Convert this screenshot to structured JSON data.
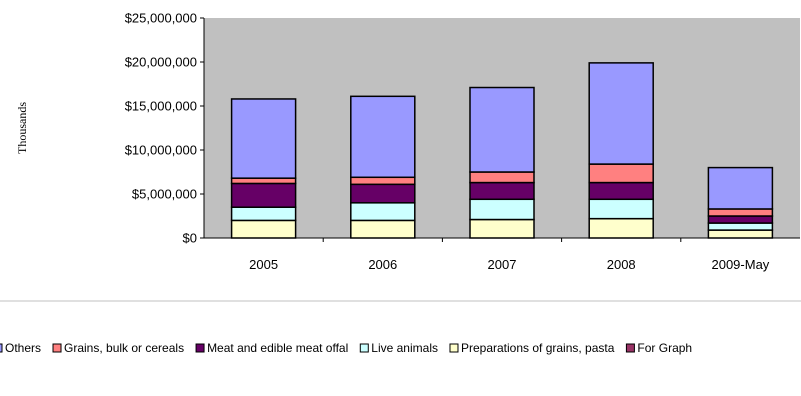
{
  "chart_data": {
    "type": "bar",
    "stacked": true,
    "title": "",
    "xlabel": "",
    "ylabel": "Thousands",
    "categories": [
      "2005",
      "2006",
      "2007",
      "2008",
      "2009-May"
    ],
    "ylim": [
      0,
      25000000
    ],
    "yticks": [
      0,
      5000000,
      10000000,
      15000000,
      20000000,
      25000000
    ],
    "ytick_labels": [
      "$0",
      "$5,000,000",
      "$10,000,000",
      "$15,000,000",
      "$20,000,000",
      "$25,000,000"
    ],
    "grid": false,
    "plot_background": "#c0c0c0",
    "legend_position": "bottom",
    "series": [
      {
        "name": "Preparations of grains, pasta",
        "color": "#ffffcc",
        "values": [
          2000000,
          2000000,
          2100000,
          2200000,
          900000
        ]
      },
      {
        "name": "Live animals",
        "color": "#ccffff",
        "values": [
          1500000,
          2000000,
          2300000,
          2200000,
          800000
        ]
      },
      {
        "name": "Meat and edible meat offal",
        "color": "#660066",
        "values": [
          2700000,
          2100000,
          1900000,
          1900000,
          800000
        ]
      },
      {
        "name": "Grains, bulk or cereals",
        "color": "#ff8080",
        "values": [
          600000,
          800000,
          1200000,
          2100000,
          800000
        ]
      },
      {
        "name": "Others",
        "color": "#9999ff",
        "values": [
          9000000,
          9200000,
          9600000,
          11500000,
          4700000
        ]
      }
    ],
    "legend_items": [
      {
        "label": "Others",
        "color": "#9999ff"
      },
      {
        "label": "Grains, bulk or cereals",
        "color": "#ff8080"
      },
      {
        "label": "Meat and edible meat offal",
        "color": "#660066"
      },
      {
        "label": "Live animals",
        "color": "#ccffff"
      },
      {
        "label": "Preparations of grains, pasta",
        "color": "#ffffcc"
      },
      {
        "label": "For Graph",
        "color": "#993366"
      }
    ]
  }
}
